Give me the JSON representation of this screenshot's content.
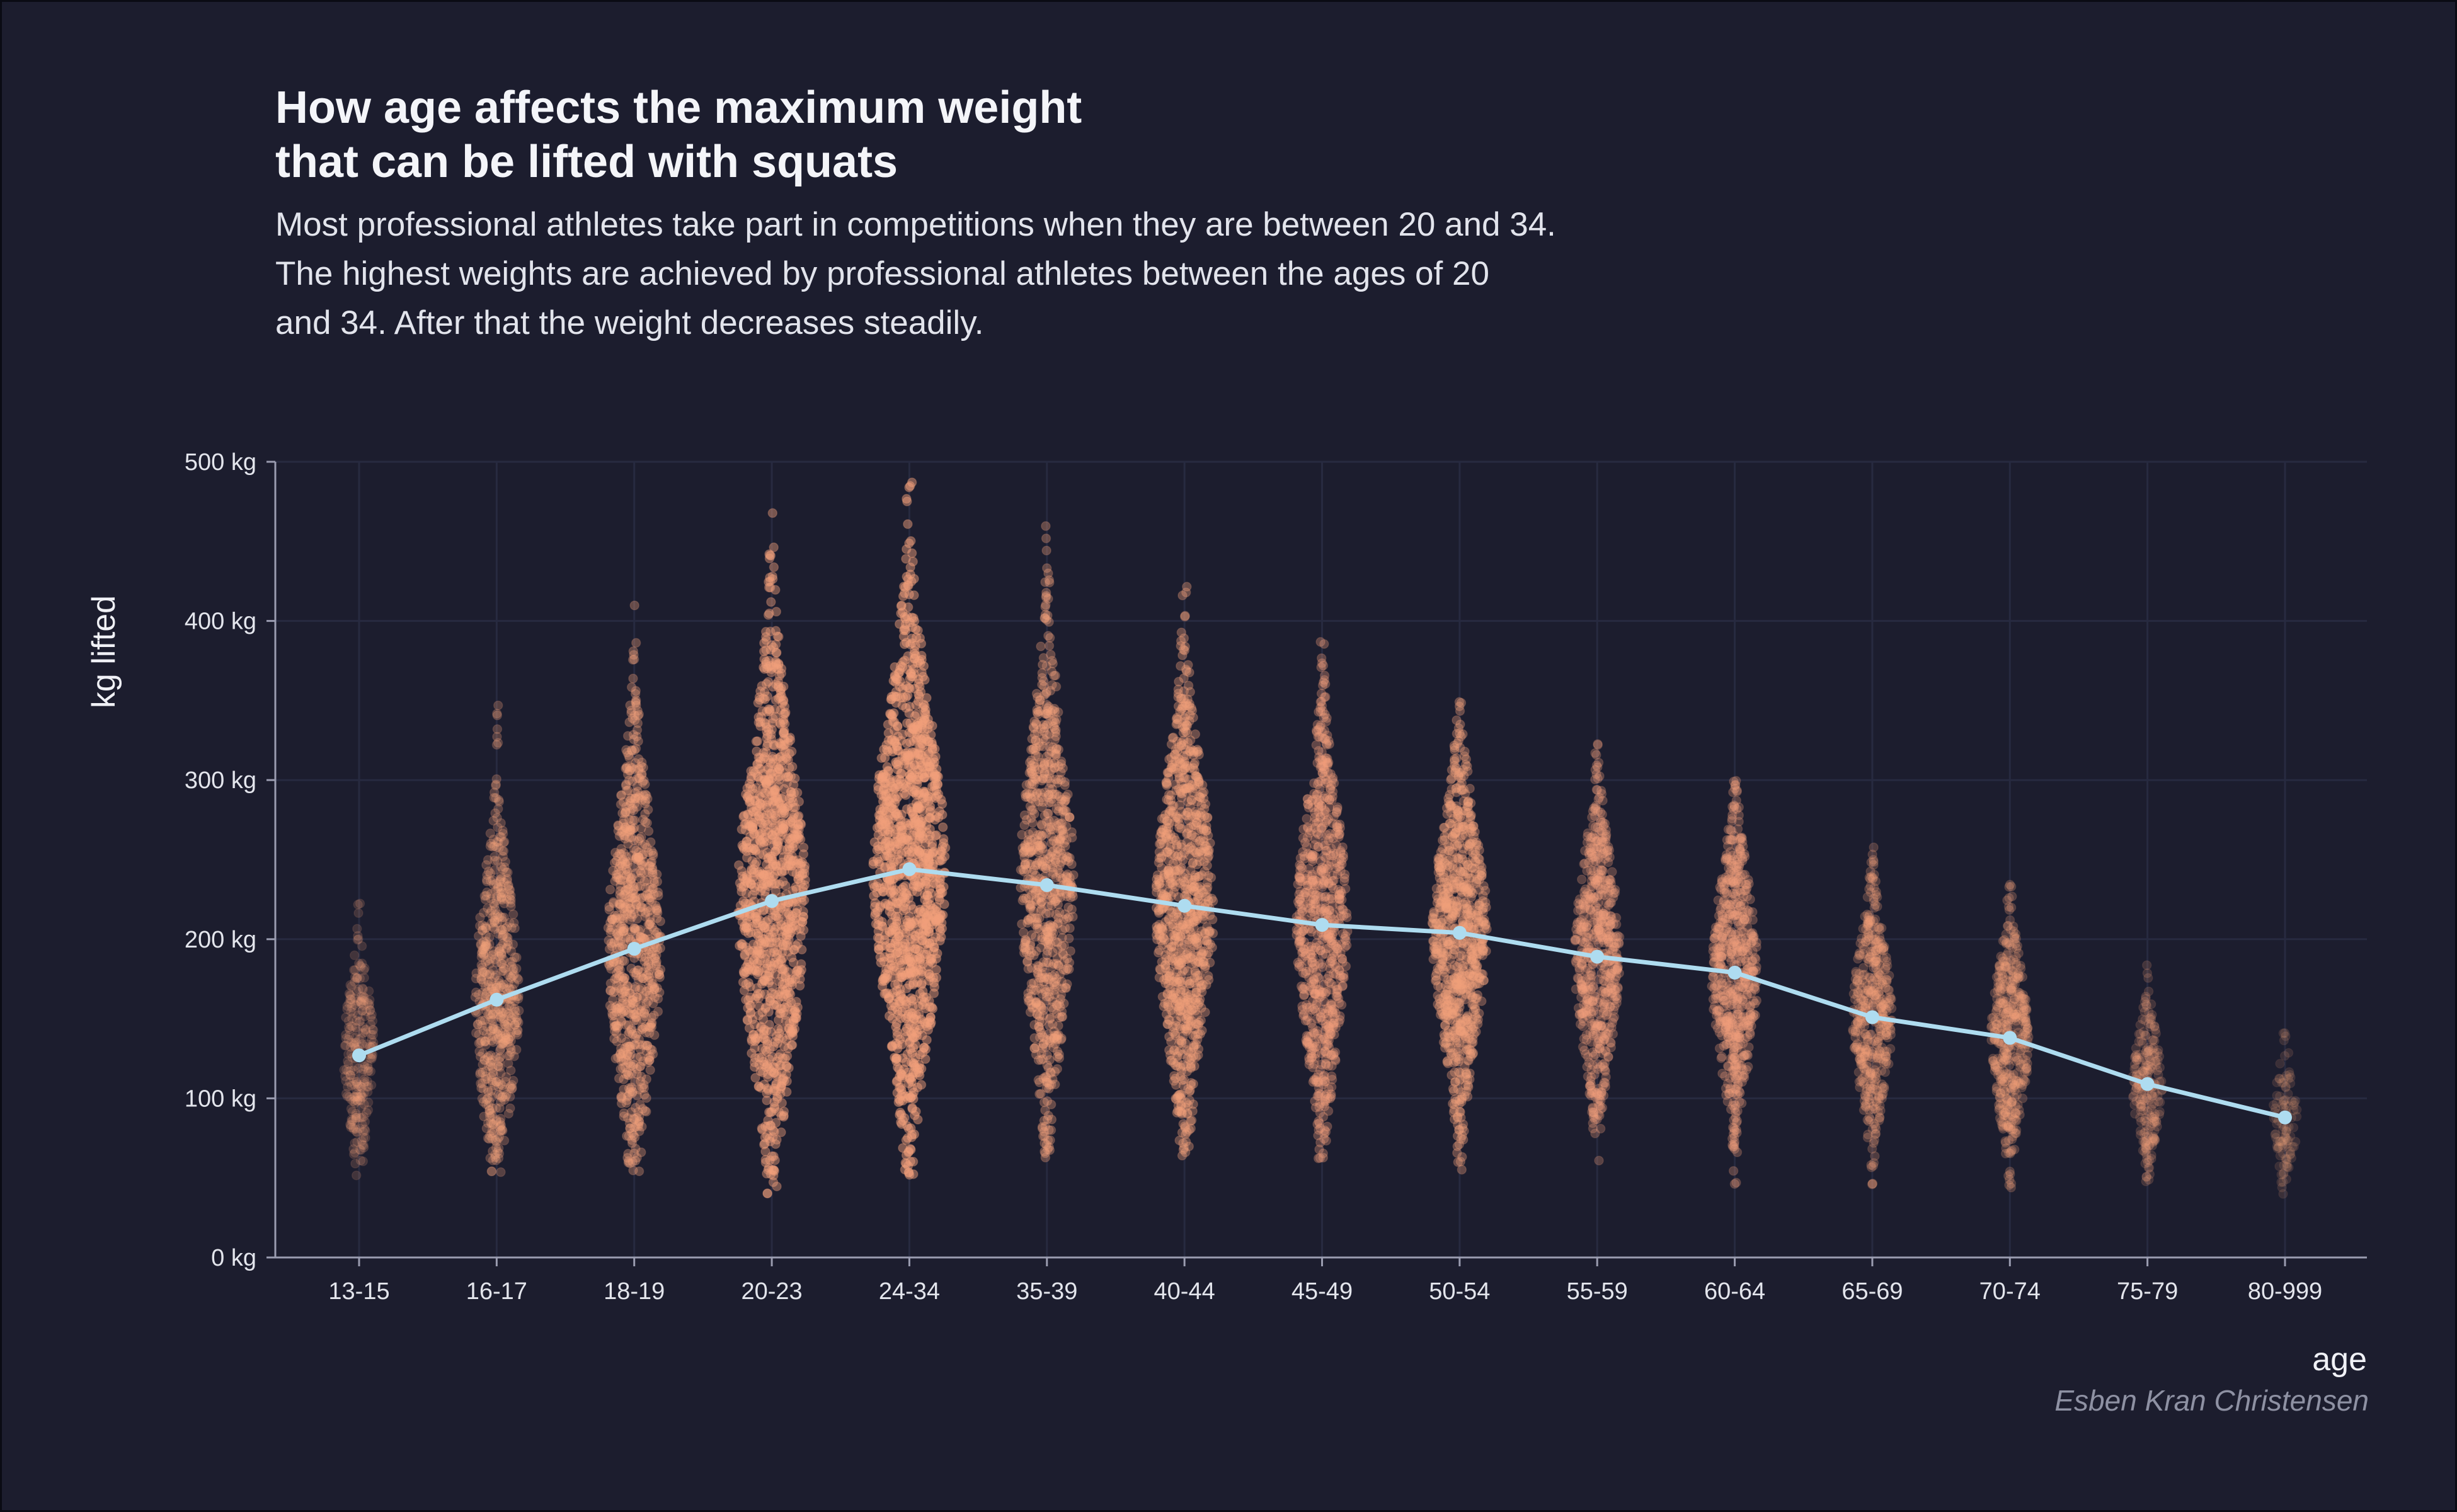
{
  "title_lines": [
    "How age affects the maximum weight",
    "that can be lifted with squats"
  ],
  "subtitle_lines": [
    "Most professional athletes take part in competitions when they are between 20 and 34.",
    "The highest weights are achieved by professional athletes between the ages of 20",
    "and 34. After that the weight decreases steadily."
  ],
  "caption": "Esben Kran Christensen",
  "colors": {
    "background": "#1c1d2e",
    "points": "#f2a07b",
    "line": "#aedcf0",
    "grid": "#272a40",
    "axis": "#9a9cb0"
  },
  "chart_data": {
    "type": "scatter",
    "subtype": "beeswarm with mean line",
    "xlabel": "age",
    "ylabel": "kg lifted",
    "ylim": [
      0,
      500
    ],
    "yticks": [
      0,
      100,
      200,
      300,
      400,
      500
    ],
    "ytick_labels": [
      "0 kg",
      "100 kg",
      "200 kg",
      "300 kg",
      "400 kg",
      "500 kg"
    ],
    "categories": [
      "13-15",
      "16-17",
      "18-19",
      "20-23",
      "24-34",
      "35-39",
      "40-44",
      "45-49",
      "50-54",
      "55-59",
      "60-64",
      "65-69",
      "70-74",
      "75-79",
      "80-999"
    ],
    "series": [
      {
        "kind": "line",
        "values": [
          127,
          162,
          194,
          224,
          244,
          234,
          221,
          209,
          204,
          189,
          179,
          151,
          138,
          109,
          88
        ]
      }
    ],
    "distributions": [
      {
        "category": "13-15",
        "min": 50,
        "max": 245,
        "density": 0.18
      },
      {
        "category": "16-17",
        "min": 52,
        "max": 370,
        "density": 0.45
      },
      {
        "category": "18-19",
        "min": 52,
        "max": 425,
        "density": 0.62
      },
      {
        "category": "20-23",
        "min": 40,
        "max": 475,
        "density": 0.9
      },
      {
        "category": "24-34",
        "min": 50,
        "max": 490,
        "density": 1.0
      },
      {
        "category": "35-39",
        "min": 55,
        "max": 460,
        "density": 0.62
      },
      {
        "category": "40-44",
        "min": 58,
        "max": 430,
        "density": 0.72
      },
      {
        "category": "45-49",
        "min": 55,
        "max": 400,
        "density": 0.58
      },
      {
        "category": "50-54",
        "min": 52,
        "max": 352,
        "density": 0.66
      },
      {
        "category": "55-59",
        "min": 60,
        "max": 330,
        "density": 0.48
      },
      {
        "category": "60-64",
        "min": 38,
        "max": 300,
        "density": 0.48
      },
      {
        "category": "65-69",
        "min": 45,
        "max": 260,
        "density": 0.35
      },
      {
        "category": "70-74",
        "min": 42,
        "max": 245,
        "density": 0.33
      },
      {
        "category": "75-79",
        "min": 45,
        "max": 188,
        "density": 0.16
      },
      {
        "category": "80-999",
        "min": 38,
        "max": 160,
        "density": 0.06
      }
    ],
    "grid": true,
    "legend": "none"
  }
}
